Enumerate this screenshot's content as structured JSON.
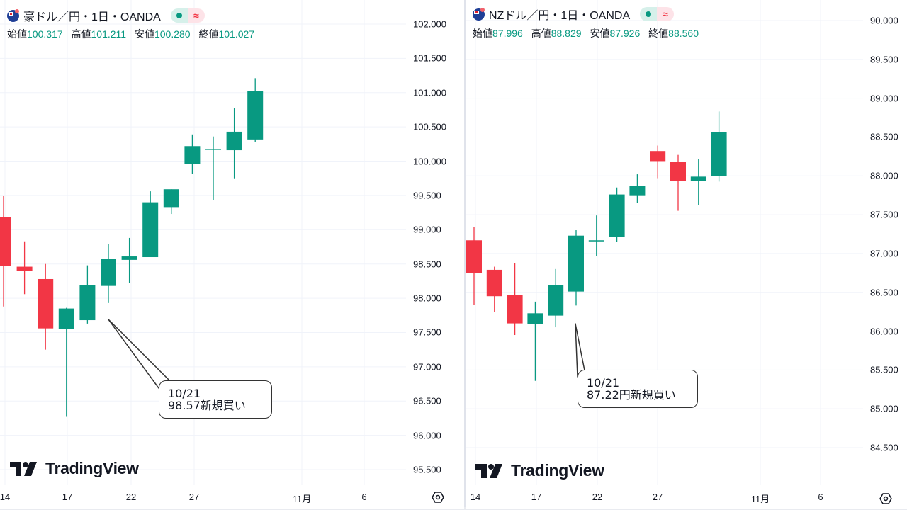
{
  "colors": {
    "up": "#089981",
    "down": "#f23645",
    "grid": "#f0f3fa"
  },
  "chart_data": [
    {
      "type": "candlestick",
      "title": "豪ドル／円・1日・OANDA",
      "flag_icon": "australia-flag-icon",
      "ohlc_labels": {
        "open_label": "始値",
        "open": "100.317",
        "high_label": "高値",
        "high": "101.211",
        "low_label": "安値",
        "low": "100.280",
        "close_label": "終値",
        "close": "101.027"
      },
      "ylim": [
        95.5,
        102.0
      ],
      "yticks": [
        "102.000",
        "101.500",
        "101.000",
        "100.500",
        "100.000",
        "99.500",
        "99.000",
        "98.500",
        "98.000",
        "97.500",
        "97.000",
        "96.500",
        "96.000",
        "95.500"
      ],
      "xticks": [
        "14",
        "17",
        "22",
        "27",
        "11月",
        "6"
      ],
      "candles": [
        {
          "date": "10/14",
          "o": 99.18,
          "h": 99.49,
          "l": 97.88,
          "c": 98.47
        },
        {
          "date": "10/15",
          "o": 98.46,
          "h": 98.83,
          "l": 98.06,
          "c": 98.4
        },
        {
          "date": "10/16",
          "o": 98.28,
          "h": 98.5,
          "l": 97.25,
          "c": 97.56
        },
        {
          "date": "10/17",
          "o": 97.55,
          "h": 97.86,
          "l": 96.27,
          "c": 97.85
        },
        {
          "date": "10/18",
          "o": 97.68,
          "h": 98.48,
          "l": 97.63,
          "c": 98.19
        },
        {
          "date": "10/21",
          "o": 98.18,
          "h": 98.79,
          "l": 97.93,
          "c": 98.57
        },
        {
          "date": "10/22",
          "o": 98.56,
          "h": 98.88,
          "l": 98.22,
          "c": 98.61
        },
        {
          "date": "10/23",
          "o": 98.6,
          "h": 99.56,
          "l": 98.6,
          "c": 99.4
        },
        {
          "date": "10/24",
          "o": 99.33,
          "h": 99.59,
          "l": 99.23,
          "c": 99.59
        },
        {
          "date": "10/25",
          "o": 99.96,
          "h": 100.39,
          "l": 99.81,
          "c": 100.22
        },
        {
          "date": "10/28",
          "o": 100.17,
          "h": 100.36,
          "l": 99.43,
          "c": 100.18
        },
        {
          "date": "10/29",
          "o": 100.16,
          "h": 100.77,
          "l": 99.75,
          "c": 100.43
        },
        {
          "date": "10/30",
          "o": 100.317,
          "h": 101.211,
          "l": 100.28,
          "c": 101.027
        }
      ],
      "annotation": {
        "line1": "10/21",
        "line2": "98.57新規買い"
      },
      "watermark": "TradingView"
    },
    {
      "type": "candlestick",
      "title": "NZドル／円・1日・OANDA",
      "flag_icon": "new-zealand-flag-icon",
      "ohlc_labels": {
        "open_label": "始値",
        "open": "87.996",
        "high_label": "高値",
        "high": "88.829",
        "low_label": "安値",
        "low": "87.926",
        "close_label": "終値",
        "close": "88.560"
      },
      "ylim": [
        84.5,
        90.0
      ],
      "yticks": [
        "90.000",
        "89.500",
        "89.000",
        "88.500",
        "88.000",
        "87.500",
        "87.000",
        "86.500",
        "86.000",
        "85.500",
        "85.000",
        "84.500"
      ],
      "xticks": [
        "14",
        "17",
        "22",
        "27",
        "11月",
        "6"
      ],
      "candles": [
        {
          "date": "10/14",
          "o": 87.17,
          "h": 87.34,
          "l": 86.34,
          "c": 86.75
        },
        {
          "date": "10/15",
          "o": 86.79,
          "h": 86.83,
          "l": 86.25,
          "c": 86.45
        },
        {
          "date": "10/16",
          "o": 86.47,
          "h": 86.88,
          "l": 85.95,
          "c": 86.1
        },
        {
          "date": "10/17",
          "o": 86.09,
          "h": 86.38,
          "l": 85.36,
          "c": 86.23
        },
        {
          "date": "10/18",
          "o": 86.2,
          "h": 86.8,
          "l": 86.05,
          "c": 86.59
        },
        {
          "date": "10/21",
          "o": 86.51,
          "h": 87.3,
          "l": 86.33,
          "c": 87.23
        },
        {
          "date": "10/22",
          "o": 87.16,
          "h": 87.49,
          "l": 86.97,
          "c": 87.17
        },
        {
          "date": "10/23",
          "o": 87.21,
          "h": 87.85,
          "l": 87.15,
          "c": 87.76
        },
        {
          "date": "10/24",
          "o": 87.75,
          "h": 88.02,
          "l": 87.65,
          "c": 87.87
        },
        {
          "date": "10/25",
          "o": 88.32,
          "h": 88.39,
          "l": 87.97,
          "c": 88.19
        },
        {
          "date": "10/28",
          "o": 88.18,
          "h": 88.27,
          "l": 87.55,
          "c": 87.93
        },
        {
          "date": "10/29",
          "o": 87.93,
          "h": 88.22,
          "l": 87.62,
          "c": 87.99
        },
        {
          "date": "10/30",
          "o": 87.996,
          "h": 88.829,
          "l": 87.926,
          "c": 88.56
        }
      ],
      "annotation": {
        "line1": "10/21",
        "line2": "87.22円新規買い"
      },
      "watermark": "TradingView"
    }
  ]
}
